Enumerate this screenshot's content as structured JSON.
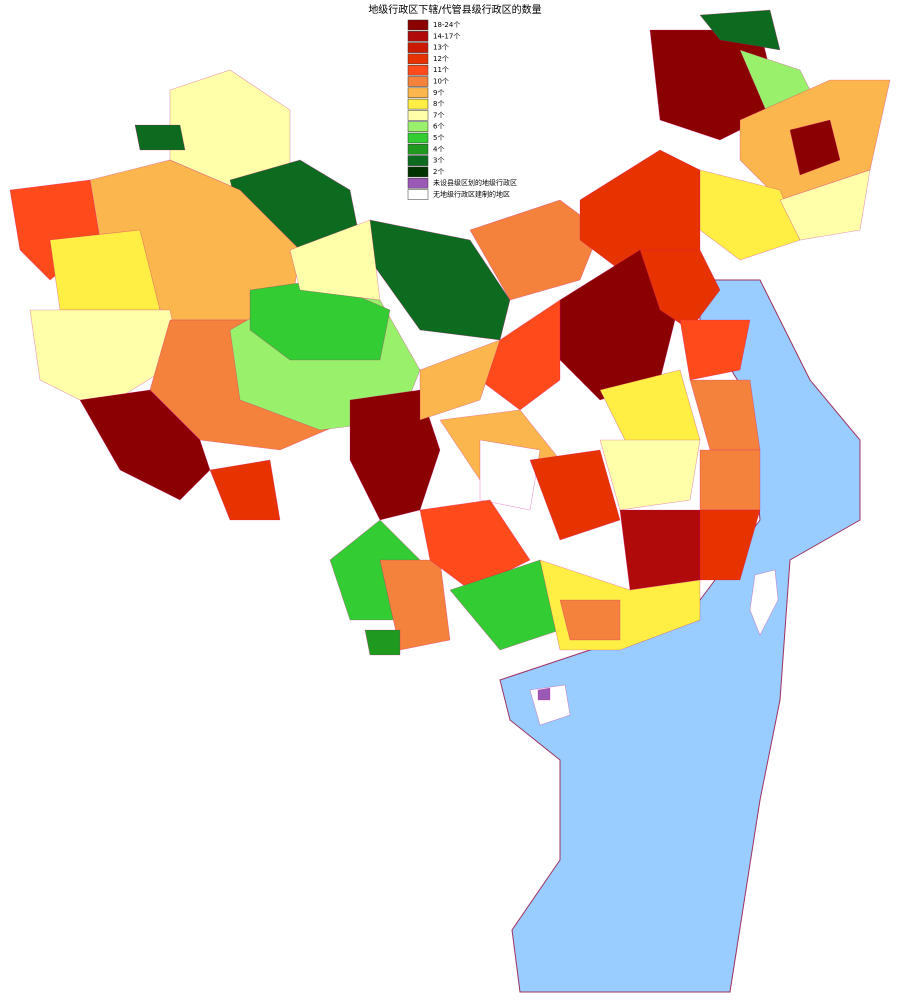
{
  "title": "地级行政区下辖/代管县级行政区的数量",
  "legend": [
    {
      "label": "18-24个",
      "color": "#8b0000"
    },
    {
      "label": "14-17个",
      "color": "#b00a0a"
    },
    {
      "label": "13个",
      "color": "#cc1a00"
    },
    {
      "label": "12个",
      "color": "#e63300"
    },
    {
      "label": "11个",
      "color": "#ff4a1c"
    },
    {
      "label": "10个",
      "color": "#f5823c"
    },
    {
      "label": "9个",
      "color": "#fbb64e"
    },
    {
      "label": "8个",
      "color": "#ffee44"
    },
    {
      "label": "7个",
      "color": "#ffffaa"
    },
    {
      "label": "6个",
      "color": "#99f06a"
    },
    {
      "label": "5个",
      "color": "#33cc33"
    },
    {
      "label": "4个",
      "color": "#1f9a1f"
    },
    {
      "label": "3个",
      "color": "#0d6b1f"
    },
    {
      "label": "2个",
      "color": "#003300"
    },
    {
      "label": "未设县级区划的地级行政区",
      "color": "#9b59b6"
    },
    {
      "label": "无地级行政区建制的地区",
      "color": "#ffffff"
    }
  ]
}
